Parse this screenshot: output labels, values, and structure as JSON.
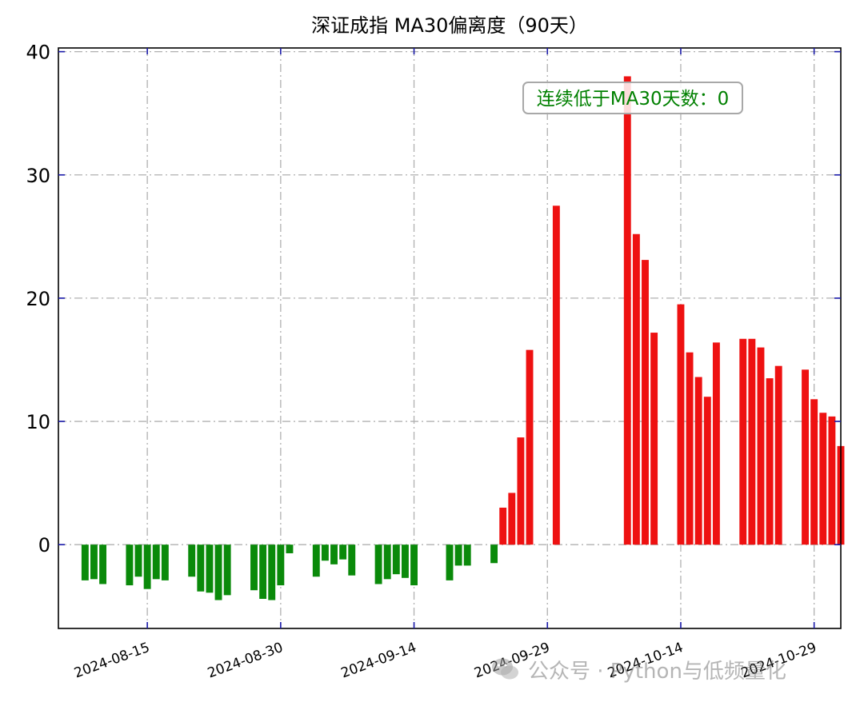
{
  "chart_data": {
    "type": "bar",
    "title": "深证成指 MA30偏离度（90天）",
    "xlabel": "",
    "ylabel": "",
    "ylim": [
      -6.8,
      40.3
    ],
    "y_ticks": [
      0,
      10,
      20,
      30,
      40
    ],
    "x_range": [
      "2024-08-05",
      "2024-11-01"
    ],
    "x_ticks": [
      "2024-08-15",
      "2024-08-30",
      "2024-09-14",
      "2024-09-29",
      "2024-10-14",
      "2024-10-29"
    ],
    "grid": true,
    "colors": {
      "positive": "#ee1111",
      "negative": "#0a8a0a",
      "grid": "#b0b0b0",
      "tick": "#1a1aaa",
      "annotation": "#008000"
    },
    "annotation": "连续低于MA30天数：0",
    "bars": [
      {
        "date": "2024-08-08",
        "value": -2.9
      },
      {
        "date": "2024-08-09",
        "value": -2.8
      },
      {
        "date": "2024-08-10",
        "value": -3.2
      },
      {
        "date": "2024-08-13",
        "value": -3.3
      },
      {
        "date": "2024-08-14",
        "value": -2.6
      },
      {
        "date": "2024-08-15",
        "value": -3.6
      },
      {
        "date": "2024-08-16",
        "value": -2.8
      },
      {
        "date": "2024-08-17",
        "value": -2.9
      },
      {
        "date": "2024-08-20",
        "value": -2.6
      },
      {
        "date": "2024-08-21",
        "value": -3.8
      },
      {
        "date": "2024-08-22",
        "value": -3.9
      },
      {
        "date": "2024-08-23",
        "value": -4.5
      },
      {
        "date": "2024-08-24",
        "value": -4.1
      },
      {
        "date": "2024-08-27",
        "value": -3.7
      },
      {
        "date": "2024-08-28",
        "value": -4.4
      },
      {
        "date": "2024-08-29",
        "value": -4.5
      },
      {
        "date": "2024-08-30",
        "value": -3.3
      },
      {
        "date": "2024-08-31",
        "value": -0.7
      },
      {
        "date": "2024-09-03",
        "value": -2.6
      },
      {
        "date": "2024-09-04",
        "value": -1.3
      },
      {
        "date": "2024-09-05",
        "value": -1.6
      },
      {
        "date": "2024-09-06",
        "value": -1.2
      },
      {
        "date": "2024-09-07",
        "value": -2.5
      },
      {
        "date": "2024-09-10",
        "value": -3.2
      },
      {
        "date": "2024-09-11",
        "value": -2.8
      },
      {
        "date": "2024-09-12",
        "value": -2.4
      },
      {
        "date": "2024-09-13",
        "value": -2.7
      },
      {
        "date": "2024-09-14",
        "value": -3.3
      },
      {
        "date": "2024-09-18",
        "value": -2.9
      },
      {
        "date": "2024-09-19",
        "value": -1.7
      },
      {
        "date": "2024-09-20",
        "value": -1.7
      },
      {
        "date": "2024-09-23",
        "value": -1.5
      },
      {
        "date": "2024-09-24",
        "value": 3.0
      },
      {
        "date": "2024-09-25",
        "value": 4.2
      },
      {
        "date": "2024-09-26",
        "value": 8.7
      },
      {
        "date": "2024-09-27",
        "value": 15.8
      },
      {
        "date": "2024-09-30",
        "value": 27.5
      },
      {
        "date": "2024-10-08",
        "value": 38.0
      },
      {
        "date": "2024-10-09",
        "value": 25.2
      },
      {
        "date": "2024-10-10",
        "value": 23.1
      },
      {
        "date": "2024-10-11",
        "value": 17.2
      },
      {
        "date": "2024-10-14",
        "value": 19.5
      },
      {
        "date": "2024-10-15",
        "value": 15.6
      },
      {
        "date": "2024-10-16",
        "value": 13.6
      },
      {
        "date": "2024-10-17",
        "value": 12.0
      },
      {
        "date": "2024-10-18",
        "value": 16.4
      },
      {
        "date": "2024-10-21",
        "value": 16.7
      },
      {
        "date": "2024-10-22",
        "value": 16.7
      },
      {
        "date": "2024-10-23",
        "value": 16.0
      },
      {
        "date": "2024-10-24",
        "value": 13.5
      },
      {
        "date": "2024-10-25",
        "value": 14.5
      },
      {
        "date": "2024-10-28",
        "value": 14.2
      },
      {
        "date": "2024-10-29",
        "value": 11.8
      },
      {
        "date": "2024-10-30",
        "value": 10.7
      },
      {
        "date": "2024-10-31",
        "value": 10.4
      },
      {
        "date": "2024-11-01",
        "value": 8.0
      }
    ]
  },
  "watermark": {
    "text": "公众号 · Python与低频量化",
    "icon": "wechat-icon"
  }
}
